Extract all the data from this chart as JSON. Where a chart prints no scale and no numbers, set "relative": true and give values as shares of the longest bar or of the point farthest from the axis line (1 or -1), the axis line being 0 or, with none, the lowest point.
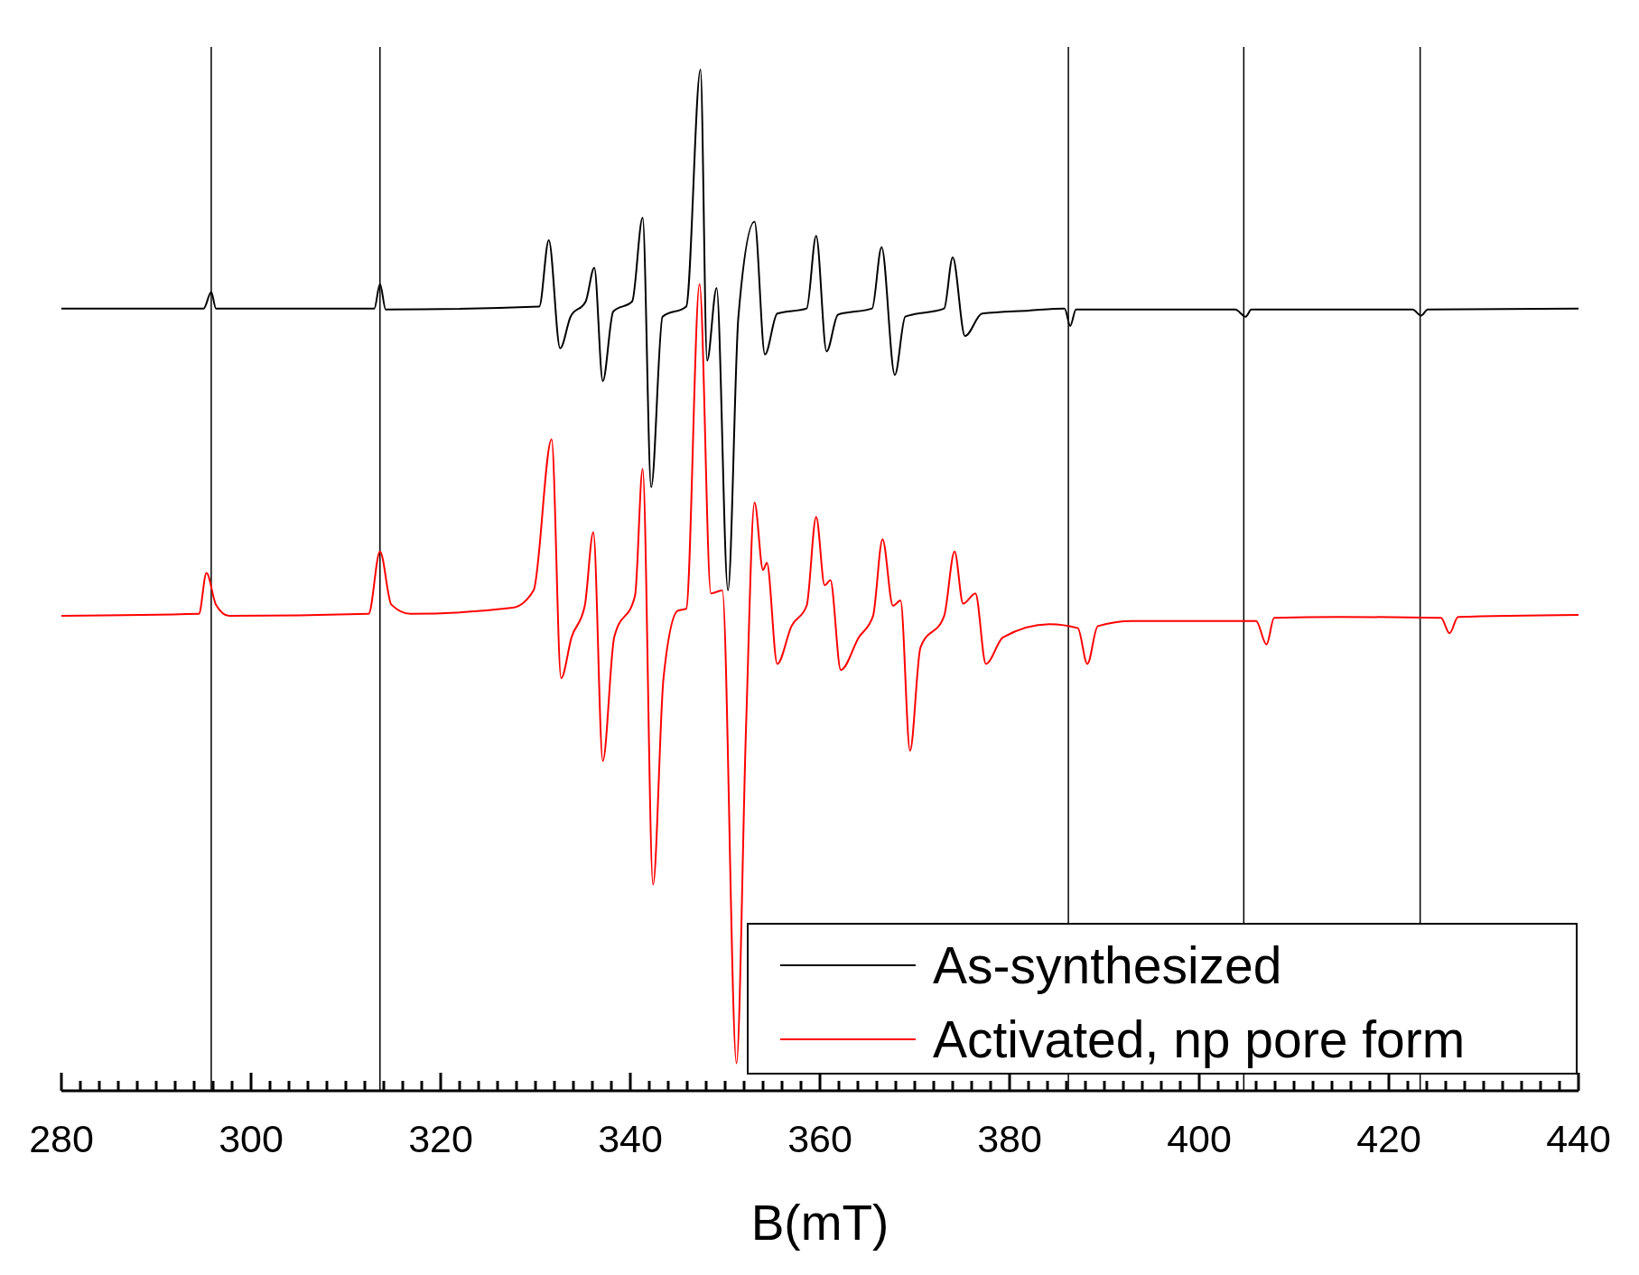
{
  "chart_data": {
    "type": "line",
    "xlabel": "B(mT)",
    "relative": true,
    "xlim": [
      280,
      440
    ],
    "xticks": [
      280,
      {
        "value": 282,
        "label": null
      },
      {
        "value": 284,
        "label": null
      },
      {
        "value": 286,
        "label": null
      },
      {
        "value": 288,
        "label": null
      },
      {
        "value": 290,
        "label": null
      },
      {
        "value": 292,
        "label": null
      },
      {
        "value": 294,
        "label": null
      },
      {
        "value": 296,
        "label": null
      },
      {
        "value": 298,
        "label": null
      },
      300,
      {
        "value": 302,
        "label": null
      },
      {
        "value": 304,
        "label": null
      },
      {
        "value": 306,
        "label": null
      },
      {
        "value": 308,
        "label": null
      },
      {
        "value": 310,
        "label": null
      },
      {
        "value": 312,
        "label": null
      },
      {
        "value": 314,
        "label": null
      },
      {
        "value": 316,
        "label": null
      },
      {
        "value": 318,
        "label": null
      },
      320,
      {
        "value": 322,
        "label": null
      },
      {
        "value": 324,
        "label": null
      },
      {
        "value": 326,
        "label": null
      },
      {
        "value": 328,
        "label": null
      },
      {
        "value": 330,
        "label": null
      },
      {
        "value": 332,
        "label": null
      },
      {
        "value": 334,
        "label": null
      },
      {
        "value": 336,
        "label": null
      },
      {
        "value": 338,
        "label": null
      },
      340,
      {
        "value": 342,
        "label": null
      },
      {
        "value": 344,
        "label": null
      },
      {
        "value": 346,
        "label": null
      },
      {
        "value": 348,
        "label": null
      },
      {
        "value": 350,
        "label": null
      },
      {
        "value": 352,
        "label": null
      },
      {
        "value": 354,
        "label": null
      },
      {
        "value": 356,
        "label": null
      },
      {
        "value": 358,
        "label": null
      },
      360,
      {
        "value": 362,
        "label": null
      },
      {
        "value": 364,
        "label": null
      },
      {
        "value": 366,
        "label": null
      },
      {
        "value": 368,
        "label": null
      },
      {
        "value": 370,
        "label": null
      },
      {
        "value": 372,
        "label": null
      },
      {
        "value": 374,
        "label": null
      },
      {
        "value": 376,
        "label": null
      },
      {
        "value": 378,
        "label": null
      },
      380,
      {
        "value": 382,
        "label": null
      },
      {
        "value": 384,
        "label": null
      },
      {
        "value": 386,
        "label": null
      },
      {
        "value": 388,
        "label": null
      },
      {
        "value": 390,
        "label": null
      },
      {
        "value": 392,
        "label": null
      },
      {
        "value": 394,
        "label": null
      },
      {
        "value": 396,
        "label": null
      },
      {
        "value": 398,
        "label": null
      },
      400,
      {
        "value": 402,
        "label": null
      },
      {
        "value": 404,
        "label": null
      },
      {
        "value": 406,
        "label": null
      },
      {
        "value": 408,
        "label": null
      },
      {
        "value": 410,
        "label": null
      },
      {
        "value": 412,
        "label": null
      },
      {
        "value": 414,
        "label": null
      },
      {
        "value": 416,
        "label": null
      },
      {
        "value": 418,
        "label": null
      },
      420,
      {
        "value": 422,
        "label": null
      },
      {
        "value": 424,
        "label": null
      },
      {
        "value": 426,
        "label": null
      },
      {
        "value": 428,
        "label": null
      },
      {
        "value": 430,
        "label": null
      },
      {
        "value": 432,
        "label": null
      },
      {
        "value": 434,
        "label": null
      },
      {
        "value": 436,
        "label": null
      },
      {
        "value": 438,
        "label": null
      },
      440
    ],
    "legend": "bottom right",
    "grid": false,
    "ref_lines": [
      {
        "axis": "x",
        "value": 295.8,
        "color": "#000000"
      },
      {
        "axis": "x",
        "value": 313.6,
        "color": "#000000"
      },
      {
        "axis": "x",
        "value": 386.2,
        "color": "#000000"
      },
      {
        "axis": "x",
        "value": 404.7,
        "color": "#000000"
      },
      {
        "axis": "x",
        "value": 423.3,
        "color": "#000000"
      }
    ],
    "series": [
      {
        "name": "As-synthesized",
        "color": "#000000",
        "x": [
          280,
          295.0,
          295.8,
          296.3,
          313.0,
          313.6,
          314.2,
          330.4,
          331.4,
          332.6,
          333.7,
          335.3,
          336.2,
          337.1,
          338.2,
          340.2,
          341.3,
          342.2,
          343.4,
          345.9,
          347.4,
          348.1,
          349.1,
          350.3,
          351.4,
          353.1,
          354.2,
          355.5,
          358.6,
          359.6,
          360.7,
          361.9,
          365.5,
          366.5,
          367.9,
          369.0,
          373.1,
          374.0,
          375.3,
          377.1,
          382.0,
          385.8,
          386.4,
          387.0,
          403.8,
          404.9,
          405.5,
          422.5,
          423.4,
          424.1,
          440
        ],
        "values": [
          0.766,
          0.766,
          0.782,
          0.766,
          0.766,
          0.79,
          0.765,
          0.768,
          0.833,
          0.727,
          0.758,
          0.773,
          0.806,
          0.695,
          0.763,
          0.773,
          0.855,
          0.591,
          0.758,
          0.768,
          1.0,
          0.715,
          0.786,
          0.49,
          0.758,
          0.851,
          0.721,
          0.761,
          0.766,
          0.837,
          0.724,
          0.76,
          0.766,
          0.826,
          0.701,
          0.758,
          0.766,
          0.816,
          0.739,
          0.761,
          0.764,
          0.766,
          0.749,
          0.765,
          0.765,
          0.758,
          0.765,
          0.765,
          0.759,
          0.765,
          0.766
        ]
      },
      {
        "name": "Activated, np pore form",
        "color": "#ff0000",
        "x": [
          280,
          294.5,
          295.3,
          296.3,
          297.7,
          312.4,
          313.6,
          314.8,
          316.8,
          327.6,
          329.8,
          331.7,
          332.7,
          333.8,
          335.2,
          336.1,
          337.1,
          338.3,
          340.5,
          341.3,
          342.4,
          343.5,
          345.0,
          345.9,
          347.3,
          348.5,
          349.7,
          351.2,
          352.2,
          353.1,
          354.0,
          354.4,
          355.5,
          357.0,
          358.6,
          359.6,
          360.5,
          361.1,
          362.2,
          364.1,
          365.6,
          366.6,
          367.7,
          368.5,
          369.5,
          370.6,
          373.1,
          374.2,
          375.1,
          376.4,
          377.5,
          379.3,
          384.2,
          387.2,
          388.2,
          389.3,
          392.9,
          406.0,
          407.1,
          407.9,
          414.7,
          425.5,
          426.4,
          427.3,
          440
        ],
        "values": [
          0.465,
          0.467,
          0.507,
          0.476,
          0.465,
          0.467,
          0.528,
          0.476,
          0.467,
          0.473,
          0.49,
          0.638,
          0.404,
          0.444,
          0.475,
          0.547,
          0.323,
          0.444,
          0.485,
          0.609,
          0.202,
          0.404,
          0.47,
          0.472,
          0.79,
          0.487,
          0.49,
          0.027,
          0.354,
          0.576,
          0.51,
          0.517,
          0.418,
          0.455,
          0.475,
          0.562,
          0.495,
          0.5,
          0.412,
          0.444,
          0.465,
          0.54,
          0.475,
          0.48,
          0.333,
          0.434,
          0.465,
          0.528,
          0.477,
          0.487,
          0.418,
          0.444,
          0.457,
          0.453,
          0.418,
          0.455,
          0.46,
          0.46,
          0.437,
          0.463,
          0.464,
          0.463,
          0.448,
          0.464,
          0.466
        ]
      }
    ]
  }
}
